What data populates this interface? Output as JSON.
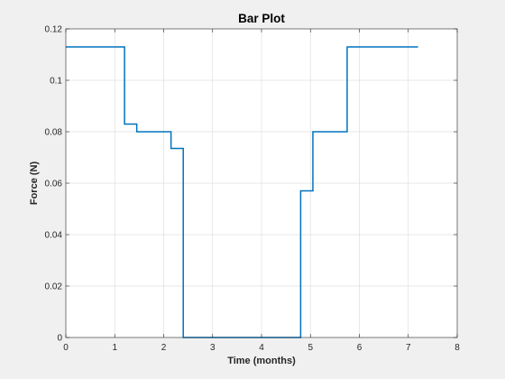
{
  "chart_data": {
    "type": "line",
    "style": "stairs",
    "title": "Bar Plot",
    "xlabel": "Time (months)",
    "ylabel": "Force (N)",
    "xlim": [
      0,
      8
    ],
    "ylim": [
      0,
      0.12
    ],
    "xticks": [
      0,
      1,
      2,
      3,
      4,
      5,
      6,
      7,
      8
    ],
    "xtick_labels": [
      "0",
      "1",
      "2",
      "3",
      "4",
      "5",
      "6",
      "7",
      "8"
    ],
    "yticks": [
      0,
      0.02,
      0.04,
      0.06,
      0.08,
      0.1,
      0.12
    ],
    "ytick_labels": [
      "0",
      "0.02",
      "0.04",
      "0.06",
      "0.08",
      "0.1",
      "0.12"
    ],
    "grid": true,
    "series": [
      {
        "color": "#0072bd",
        "x": [
          0,
          1.2,
          1.45,
          2.15,
          2.4,
          4.8,
          5.05,
          5.75,
          7.2
        ],
        "y": [
          0.113,
          0.083,
          0.08,
          0.0735,
          0,
          0.057,
          0.08,
          0.113,
          0.113
        ]
      }
    ]
  }
}
